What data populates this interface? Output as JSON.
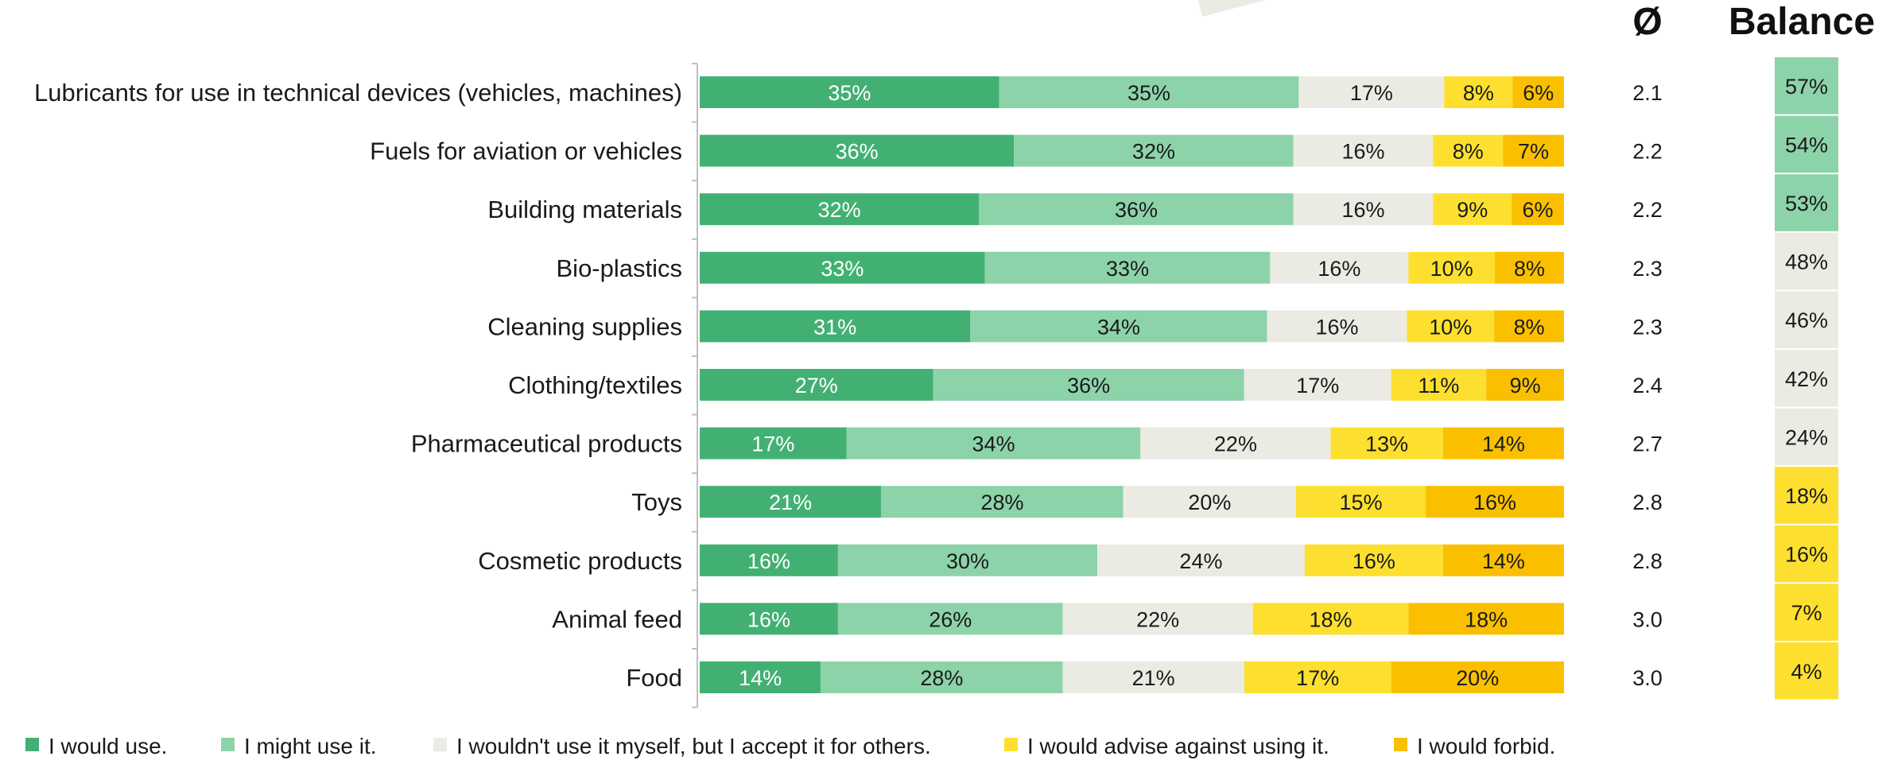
{
  "chart_data": {
    "type": "bar",
    "orientation": "horizontal",
    "stacked": true,
    "normalized": true,
    "categories": [
      "Lubricants for use in technical devices (vehicles, machines)",
      "Fuels for aviation or vehicles",
      "Building materials",
      "Bio-plastics",
      "Cleaning supplies",
      "Clothing/textiles",
      "Pharmaceutical products",
      "Toys",
      "Cosmetic products",
      "Animal feed",
      "Food"
    ],
    "series": [
      {
        "name": "I would use.",
        "color": "#43b073",
        "label_color": "#ffffff",
        "values": [
          35,
          36,
          32,
          33,
          31,
          27,
          17,
          21,
          16,
          16,
          14
        ]
      },
      {
        "name": "I might use it.",
        "color": "#8dd3aa",
        "label_color": "#1a1a1a",
        "values": [
          35,
          32,
          36,
          33,
          34,
          36,
          34,
          28,
          30,
          26,
          28
        ]
      },
      {
        "name": "I wouldn't use it myself, but I accept it for others.",
        "color": "#ecebe3",
        "label_color": "#1a1a1a",
        "values": [
          17,
          16,
          16,
          16,
          16,
          17,
          22,
          20,
          24,
          22,
          21
        ]
      },
      {
        "name": "I would advise against using it.",
        "color": "#fde02f",
        "label_color": "#1a1a1a",
        "values": [
          8,
          8,
          9,
          10,
          10,
          11,
          13,
          15,
          16,
          18,
          17
        ]
      },
      {
        "name": "I would forbid.",
        "color": "#fac000",
        "label_color": "#1a1a1a",
        "values": [
          6,
          7,
          6,
          8,
          8,
          9,
          14,
          16,
          14,
          18,
          20
        ]
      }
    ],
    "value_suffix": "%",
    "average": {
      "header": "Ø",
      "values": [
        "2.1",
        "2.2",
        "2.2",
        "2.3",
        "2.3",
        "2.4",
        "2.7",
        "2.8",
        "2.8",
        "3.0",
        "3.0"
      ]
    },
    "balance": {
      "header": "Balance",
      "values": [
        57,
        54,
        53,
        48,
        46,
        42,
        24,
        18,
        16,
        7,
        4
      ],
      "colors": [
        "#8dd3aa",
        "#8dd3aa",
        "#8dd3aa",
        "#ecebe3",
        "#ecebe3",
        "#ecebe3",
        "#ecebe3",
        "#fde02f",
        "#fde02f",
        "#fde02f",
        "#fde02f"
      ]
    },
    "legend_position": "bottom",
    "grid": false
  }
}
